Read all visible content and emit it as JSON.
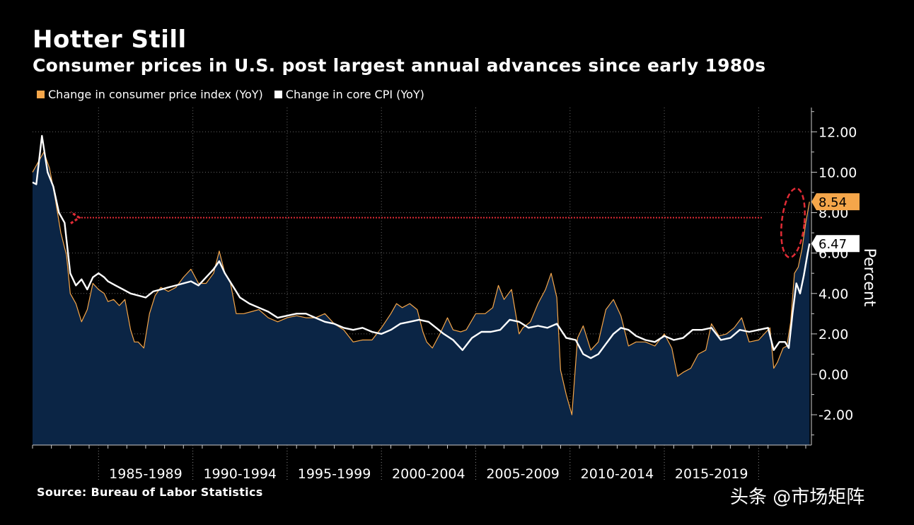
{
  "chart_data": {
    "type": "line",
    "title": "Hotter Still",
    "subtitle": "Consumer prices in U.S. post largest annual advances since early 1980s",
    "ylabel": "Percent",
    "xlabel": "",
    "ylim": [
      -3.5,
      13.2
    ],
    "y_ticks": [
      "12.00",
      "10.00",
      "8.00",
      "6.00",
      "4.00",
      "2.00",
      "0.00",
      "-2.00"
    ],
    "y_tick_values": [
      12,
      10,
      8,
      6,
      4,
      2,
      0,
      -2
    ],
    "x_tick_labels": [
      "1985-1989",
      "1990-1994",
      "1995-1999",
      "2000-2004",
      "2005-2009",
      "2010-2014",
      "2015-2019"
    ],
    "x_range": [
      1981.0,
      2022.3
    ],
    "grid": true,
    "legend_position": "top-left",
    "series": [
      {
        "name": "Change in consumer price index (YoY)",
        "color": "#f5a64a",
        "last_value_label": "8.54",
        "x": [
          1981.0,
          1981.3,
          1981.6,
          1981.9,
          1982.2,
          1982.5,
          1982.8,
          1983.0,
          1983.3,
          1983.6,
          1983.9,
          1984.2,
          1984.5,
          1984.8,
          1985.0,
          1985.3,
          1985.6,
          1985.9,
          1986.2,
          1986.4,
          1986.6,
          1986.9,
          1987.2,
          1987.5,
          1987.8,
          1988.2,
          1988.6,
          1989.0,
          1989.4,
          1989.8,
          1990.2,
          1990.6,
          1990.9,
          1991.2,
          1991.5,
          1991.8,
          1992.2,
          1992.6,
          1993.0,
          1993.5,
          1994.0,
          1994.5,
          1995.0,
          1995.5,
          1996.0,
          1996.5,
          1997.0,
          1997.5,
          1998.0,
          1998.5,
          1999.0,
          1999.5,
          2000.0,
          2000.3,
          2000.6,
          2001.0,
          2001.4,
          2001.7,
          2001.9,
          2002.2,
          2002.6,
          2003.0,
          2003.3,
          2003.7,
          2004.0,
          2004.5,
          2005.0,
          2005.4,
          2005.7,
          2006.0,
          2006.4,
          2006.8,
          2007.0,
          2007.4,
          2007.8,
          2008.2,
          2008.5,
          2008.8,
          2009.0,
          2009.3,
          2009.6,
          2009.9,
          2010.2,
          2010.6,
          2011.0,
          2011.4,
          2011.8,
          2012.2,
          2012.6,
          2013.0,
          2013.5,
          2014.0,
          2014.5,
          2014.9,
          2015.2,
          2015.5,
          2015.9,
          2016.3,
          2016.7,
          2017.0,
          2017.4,
          2017.8,
          2018.2,
          2018.6,
          2019.0,
          2019.5,
          2019.9,
          2020.1,
          2020.3,
          2020.5,
          2020.8,
          2021.0,
          2021.2,
          2021.4,
          2021.6,
          2021.8,
          2022.0,
          2022.2
        ],
        "y": [
          10.0,
          10.5,
          11.0,
          10.2,
          8.7,
          7.0,
          5.9,
          4.0,
          3.5,
          2.6,
          3.2,
          4.5,
          4.2,
          4.0,
          3.6,
          3.7,
          3.4,
          3.7,
          2.2,
          1.6,
          1.6,
          1.3,
          3.0,
          3.9,
          4.3,
          4.1,
          4.3,
          4.8,
          5.2,
          4.5,
          4.5,
          5.0,
          6.1,
          5.0,
          4.5,
          3.0,
          3.0,
          3.1,
          3.2,
          2.8,
          2.6,
          2.8,
          2.9,
          2.8,
          2.8,
          3.0,
          2.5,
          2.2,
          1.6,
          1.7,
          1.7,
          2.3,
          3.0,
          3.5,
          3.3,
          3.5,
          3.2,
          2.1,
          1.6,
          1.3,
          2.0,
          2.8,
          2.2,
          2.1,
          2.2,
          3.0,
          3.0,
          3.3,
          4.4,
          3.7,
          4.2,
          2.0,
          2.3,
          2.6,
          3.5,
          4.2,
          5.0,
          3.8,
          0.2,
          -1.0,
          -2.0,
          1.8,
          2.4,
          1.2,
          1.6,
          3.2,
          3.7,
          2.9,
          1.4,
          1.6,
          1.6,
          1.4,
          2.0,
          1.3,
          -0.1,
          0.1,
          0.3,
          1.0,
          1.2,
          2.5,
          1.9,
          2.0,
          2.3,
          2.8,
          1.6,
          1.7,
          2.1,
          2.3,
          0.3,
          0.6,
          1.3,
          1.4,
          2.6,
          5.0,
          5.3,
          6.2,
          7.5,
          8.54
        ]
      },
      {
        "name": "Change in core CPI (YoY)",
        "color": "#ffffff",
        "last_value_label": "6.47",
        "x": [
          1981.0,
          1981.2,
          1981.5,
          1981.8,
          1982.1,
          1982.4,
          1982.7,
          1983.0,
          1983.3,
          1983.6,
          1983.9,
          1984.2,
          1984.5,
          1984.8,
          1985.0,
          1985.4,
          1985.8,
          1986.2,
          1986.6,
          1987.0,
          1987.4,
          1987.8,
          1988.2,
          1988.6,
          1989.0,
          1989.4,
          1989.8,
          1990.2,
          1990.6,
          1990.9,
          1991.2,
          1991.6,
          1992.0,
          1992.5,
          1993.0,
          1993.5,
          1994.0,
          1994.5,
          1995.0,
          1995.5,
          1996.0,
          1996.5,
          1997.0,
          1997.5,
          1998.0,
          1998.5,
          1999.0,
          1999.5,
          2000.0,
          2000.5,
          2001.0,
          2001.5,
          2002.0,
          2002.4,
          2002.8,
          2003.3,
          2003.8,
          2004.3,
          2004.8,
          2005.3,
          2005.8,
          2006.3,
          2006.8,
          2007.3,
          2007.8,
          2008.3,
          2008.8,
          2009.3,
          2009.8,
          2010.2,
          2010.6,
          2011.0,
          2011.4,
          2011.8,
          2012.2,
          2012.6,
          2013.0,
          2013.5,
          2014.0,
          2014.5,
          2015.0,
          2015.5,
          2016.0,
          2016.5,
          2017.0,
          2017.5,
          2018.0,
          2018.5,
          2019.0,
          2019.5,
          2020.0,
          2020.3,
          2020.6,
          2020.9,
          2021.1,
          2021.3,
          2021.5,
          2021.7,
          2021.9,
          2022.1,
          2022.2
        ],
        "y": [
          9.5,
          9.4,
          11.8,
          10.0,
          9.3,
          8.0,
          7.5,
          5.0,
          4.4,
          4.7,
          4.2,
          4.8,
          5.0,
          4.8,
          4.6,
          4.4,
          4.2,
          4.0,
          3.9,
          3.8,
          4.1,
          4.2,
          4.3,
          4.4,
          4.5,
          4.6,
          4.4,
          4.8,
          5.2,
          5.6,
          5.0,
          4.4,
          3.8,
          3.5,
          3.3,
          3.1,
          2.8,
          2.9,
          3.0,
          3.0,
          2.8,
          2.6,
          2.5,
          2.3,
          2.2,
          2.3,
          2.1,
          2.0,
          2.2,
          2.5,
          2.6,
          2.7,
          2.6,
          2.3,
          2.0,
          1.7,
          1.2,
          1.8,
          2.1,
          2.1,
          2.2,
          2.7,
          2.6,
          2.3,
          2.4,
          2.3,
          2.5,
          1.8,
          1.7,
          1.0,
          0.8,
          1.0,
          1.5,
          2.0,
          2.3,
          2.2,
          1.9,
          1.7,
          1.6,
          1.9,
          1.7,
          1.8,
          2.2,
          2.2,
          2.3,
          1.7,
          1.8,
          2.2,
          2.1,
          2.2,
          2.3,
          1.2,
          1.6,
          1.6,
          1.3,
          3.0,
          4.5,
          4.0,
          4.9,
          6.0,
          6.47
        ]
      }
    ]
  },
  "legend": {
    "cpi_label": "Change in consumer price index (YoY)",
    "core_label": "Change in core CPI (YoY)"
  },
  "footer": {
    "source": "Source: Bureau of Labor Statistics",
    "watermark": "头条 @市场矩阵"
  },
  "colors": {
    "background": "#000000",
    "area_fill": "#0b2545",
    "cpi": "#f5a64a",
    "core": "#ffffff",
    "annotation": "#e02b35",
    "grid": "#666666"
  }
}
